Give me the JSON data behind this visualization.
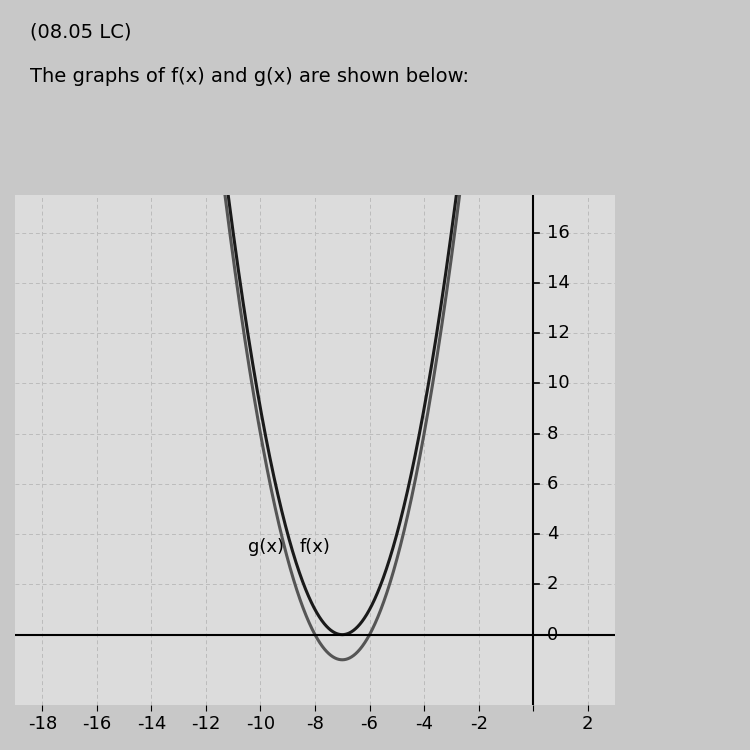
{
  "title": "(08.05 LC)",
  "subtitle": "The graphs of f(x) and g(x) are shown below:",
  "fx_label": "f(x)",
  "gx_label": "g(x)",
  "fx_vertex_x": -7,
  "fx_vertex_y": 0,
  "gx_vertex_x": -7,
  "gx_vertex_y": -1,
  "xlim": [
    -19,
    3
  ],
  "ylim": [
    -2.8,
    17.5
  ],
  "xticks": [
    -18,
    -16,
    -14,
    -12,
    -10,
    -8,
    -6,
    -4,
    -2,
    0,
    2
  ],
  "yticks": [
    0,
    2,
    4,
    6,
    8,
    10,
    12,
    14,
    16
  ],
  "grid_color": "#bbbbbb",
  "grid_dash": [
    4,
    3
  ],
  "fx_color": "#1a1a1a",
  "gx_color": "#555555",
  "bg_color": "#c8c8c8",
  "plot_bg_color": "#dcdcdc",
  "outer_bg_color": "#c8c8c8",
  "title_fontsize": 14,
  "subtitle_fontsize": 14,
  "label_fontsize": 13,
  "tick_fontsize": 13,
  "linewidth": 2.2
}
